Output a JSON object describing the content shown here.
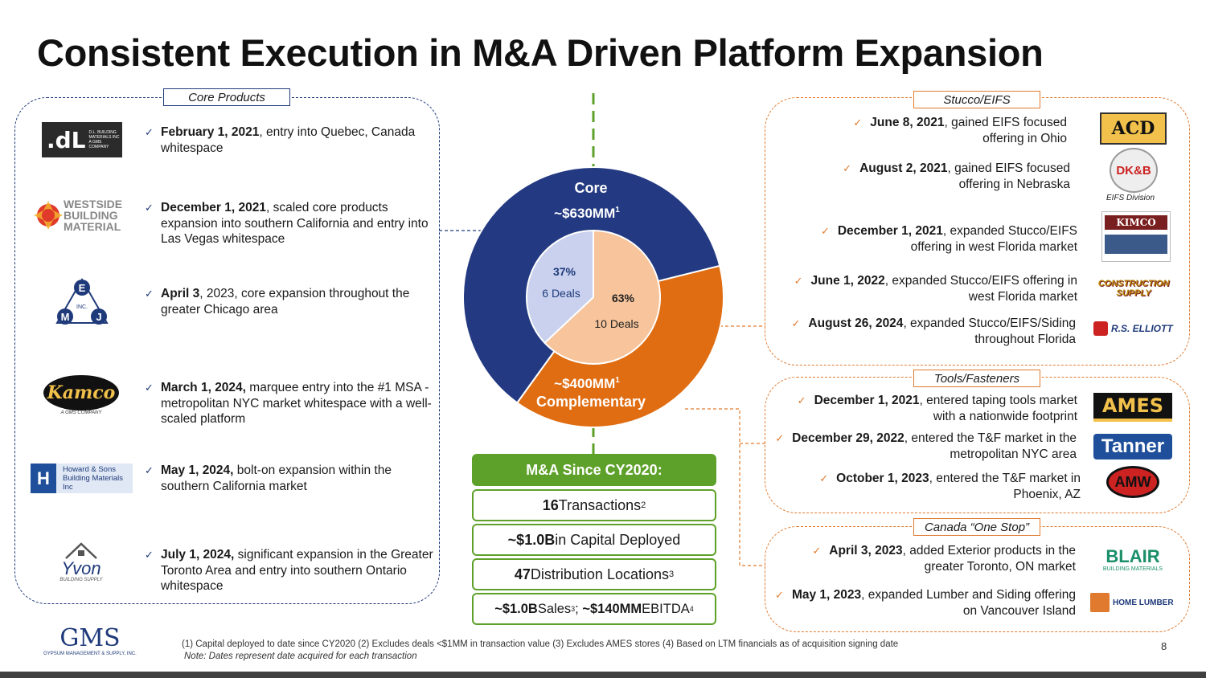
{
  "title": "Consistent Execution in M&A Driven Platform Expansion",
  "core_products": {
    "label": "Core Products",
    "items": [
      {
        "date": "February 1, 2021",
        "text": ", entry into Quebec, Canada whitespace",
        "logo": "D.L. BUILDING MATERIALS INC",
        "logo_sub": "A GMS COMPANY"
      },
      {
        "date": "December 1, 2021",
        "text": ", scaled core products expansion into southern California and entry into Las Vegas whitespace",
        "logo": "WESTSIDE BUILDING MATERIAL"
      },
      {
        "date": "April 3",
        "text": ", 2023, core expansion throughout the greater Chicago area",
        "logo": "E M J INC."
      },
      {
        "date": "March 1, 2024,",
        "text": " marquee entry into the #1 MSA - metropolitan NYC market whitespace with a well-scaled platform",
        "logo": "Kamco",
        "logo_sub": "A GMS COMPANY"
      },
      {
        "date": "May 1, 2024,",
        "text": " bolt-on expansion within the southern California market",
        "logo": "Howard & Sons Building Materials Inc"
      },
      {
        "date": "July 1, 2024,",
        "text": " significant expansion in the Greater Toronto Area and entry into southern Ontario whitespace",
        "logo": "Yvon",
        "logo_sub": "BUILDING SUPPLY"
      }
    ]
  },
  "stucco": {
    "label": "Stucco/EIFS",
    "items": [
      {
        "date": "June 8, 2021",
        "text": ", gained EIFS focused offering in Ohio",
        "logo": "ACD"
      },
      {
        "date": "August 2, 2021",
        "text": ", gained EIFS focused offering in Nebraska",
        "logo": "DK&B",
        "logo_caption": "EIFS Division"
      },
      {
        "date": "December 1, 2021",
        "text": ", expanded Stucco/EIFS offering in west Florida market",
        "logo": "KIMCO"
      },
      {
        "date": "June 1, 2022",
        "text": ", expanded Stucco/EIFS offering in west Florida market",
        "logo": "CONSTRUCTION SUPPLY"
      },
      {
        "date": "August 26, 2024",
        "text": ", expanded Stucco/EIFS/Siding throughout Florida",
        "logo": "R.S. ELLIOTT"
      }
    ]
  },
  "tools": {
    "label": "Tools/Fasteners",
    "items": [
      {
        "date": "December 1, 2021",
        "text": ", entered taping tools market with a nationwide footprint",
        "logo": "AMES"
      },
      {
        "date": "December 29, 2022",
        "text": ", entered the T&F market in the metropolitan NYC area",
        "logo": "Tanner"
      },
      {
        "date": "October 1, 2023",
        "text": ", entered the T&F market in Phoenix, AZ",
        "logo": "AMW"
      }
    ]
  },
  "canada": {
    "label": "Canada “One Stop”",
    "items": [
      {
        "date": "April 3, 2023",
        "text": ", added Exterior products in the greater Toronto, ON market",
        "logo": "BLAIR",
        "logo_sub": "BUILDING MATERIALS"
      },
      {
        "date": "May 1, 2023",
        "text": ", expanded Lumber and Siding offering on Vancouver Island",
        "logo": "HOME LUMBER"
      }
    ]
  },
  "chart_data": {
    "type": "pie",
    "outer": {
      "series": [
        {
          "name": "Core",
          "value_label": "~$630MM",
          "sup": "1",
          "value": 630,
          "color": "#233a82"
        },
        {
          "name": "Complementary",
          "value_label": "~$400MM",
          "sup": "1",
          "value": 400,
          "color": "#e06d12"
        }
      ]
    },
    "inner": {
      "series": [
        {
          "pct": "37%",
          "deals": "6 Deals",
          "value": 37,
          "color": "#c9d1ee"
        },
        {
          "pct": "63%",
          "deals": "10 Deals",
          "value": 63,
          "color": "#f7c49b"
        }
      ]
    }
  },
  "ma": {
    "header": "M&A Since CY2020:",
    "transactions_num": "16",
    "transactions_txt": " Transactions",
    "transactions_sup": "2",
    "capital_num": "~$1.0B",
    "capital_txt": " in Capital Deployed",
    "locations_num": "47",
    "locations_txt": " Distribution Locations",
    "locations_sup": "3",
    "sales_num": "~$1.0B",
    "sales_txt": " Sales",
    "sales_sup": "3",
    "ebitda_num": "~$140MM",
    "ebitda_txt": " EBITDA",
    "ebitda_sup": "4"
  },
  "footer": {
    "logo": "GMS",
    "logo_sub": "GYPSUM MANAGEMENT & SUPPLY, INC.",
    "notes": "(1) Capital deployed to date since CY2020 (2) Excludes deals <$1MM in transaction value (3) Excludes AMES stores (4) Based on LTM financials as of acquisition signing date",
    "note2": "Note: Dates represent date acquired for each transaction",
    "page": "8"
  },
  "check_glyph": "✓"
}
